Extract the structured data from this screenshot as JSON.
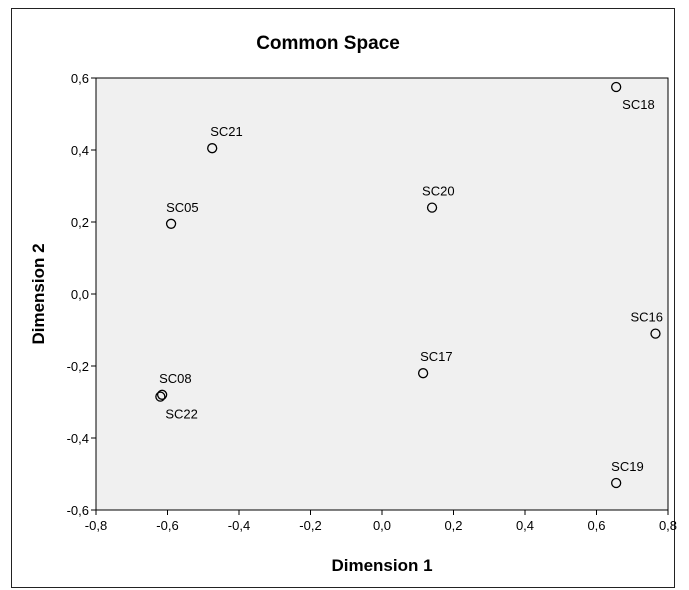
{
  "chart_data": {
    "type": "scatter",
    "title": "Common Space",
    "xlabel": "Dimension 1",
    "ylabel": "Dimension 2",
    "xlim": [
      -0.8,
      0.8
    ],
    "ylim": [
      -0.6,
      0.6
    ],
    "xticks": [
      "-0,8",
      "-0,6",
      "-0,4",
      "-0,2",
      "0,0",
      "0,2",
      "0,4",
      "0,6",
      "0,8"
    ],
    "yticks": [
      "-0,6",
      "-0,4",
      "-0,2",
      "0,0",
      "0,2",
      "0,4",
      "0,6"
    ],
    "grid": false,
    "plot_background": "#f0f0f0",
    "marker": "open-circle",
    "points": [
      {
        "label": "SC18",
        "x": 0.655,
        "y": 0.575
      },
      {
        "label": "SC21",
        "x": -0.475,
        "y": 0.405
      },
      {
        "label": "SC20",
        "x": 0.14,
        "y": 0.24
      },
      {
        "label": "SC05",
        "x": -0.59,
        "y": 0.195
      },
      {
        "label": "SC16",
        "x": 0.765,
        "y": -0.11
      },
      {
        "label": "SC17",
        "x": 0.115,
        "y": -0.22
      },
      {
        "label": "SC08",
        "x": -0.615,
        "y": -0.28
      },
      {
        "label": "SC22",
        "x": -0.62,
        "y": -0.285
      },
      {
        "label": "SC19",
        "x": 0.655,
        "y": -0.525
      }
    ]
  }
}
